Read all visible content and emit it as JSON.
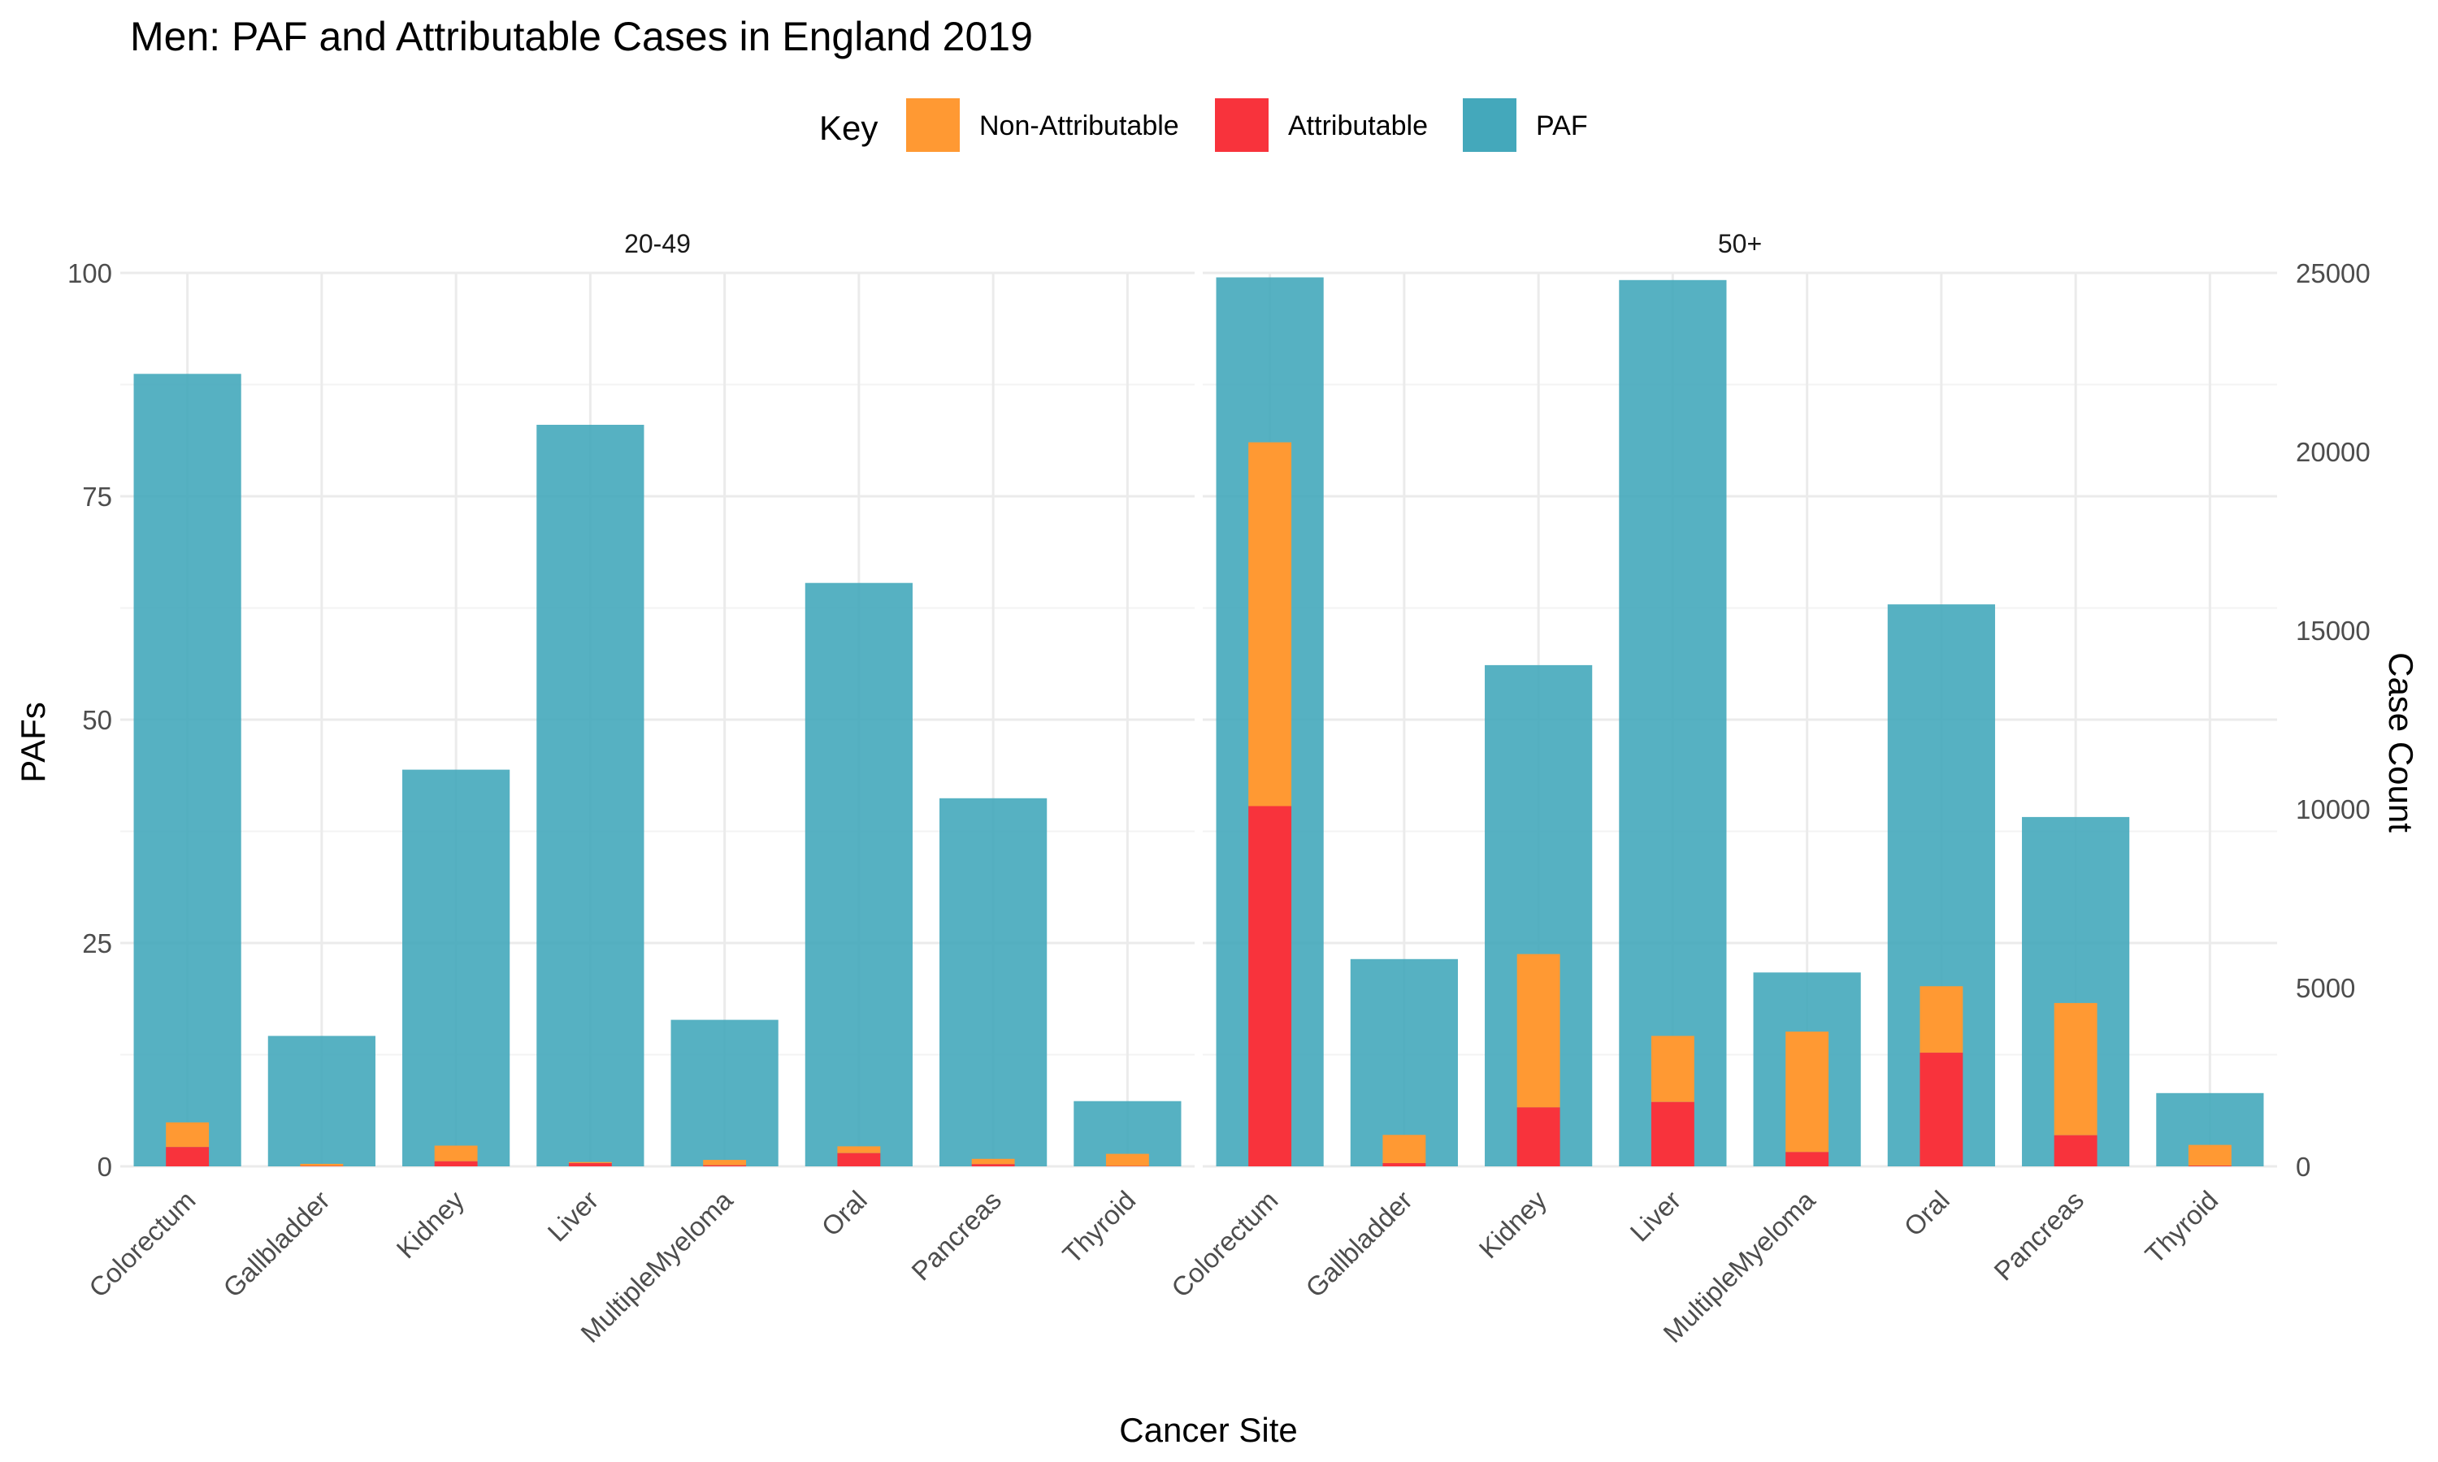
{
  "chart_data": {
    "type": "bar",
    "title": "Men: PAF and Attributable Cases in England 2019",
    "xlabel": "Cancer Site",
    "ylabel": "PAFs",
    "y2label": "Case Count",
    "ylim": [
      0,
      100
    ],
    "y2lim": [
      0,
      25000
    ],
    "yticks": [
      "0",
      "25",
      "50",
      "75",
      "100"
    ],
    "y2ticks": [
      "0",
      "5000",
      "10000",
      "15000",
      "20000",
      "25000"
    ],
    "legend": {
      "title": "Key",
      "position": "top",
      "items": [
        {
          "label": "Non-Attributable",
          "color": "#FF9933"
        },
        {
          "label": "Attributable",
          "color": "#F8333C"
        },
        {
          "label": "PAF",
          "color": "#44A8BB"
        }
      ]
    },
    "grid": true,
    "categories": [
      "Colorectum",
      "Gallbladder",
      "Kidney",
      "Liver",
      "MultipleMyeloma",
      "Oral",
      "Pancreas",
      "Thyroid"
    ],
    "facets": [
      {
        "label": "20-49",
        "paf": [
          88.7,
          14.6,
          44.4,
          83.0,
          16.4,
          65.3,
          41.2,
          7.3
        ],
        "attributable_cases": [
          540,
          10,
          140,
          90,
          30,
          370,
          60,
          10
        ],
        "non_attributable_cases": [
          690,
          60,
          440,
          30,
          150,
          190,
          150,
          340
        ]
      },
      {
        "label": "50+",
        "paf": [
          99.5,
          23.2,
          56.1,
          99.2,
          21.7,
          62.9,
          39.1,
          8.2
        ],
        "attributable_cases": [
          10080,
          90,
          1650,
          1800,
          400,
          3180,
          870,
          20
        ],
        "non_attributable_cases": [
          10180,
          790,
          4290,
          1850,
          3370,
          1860,
          3700,
          580
        ]
      }
    ]
  }
}
